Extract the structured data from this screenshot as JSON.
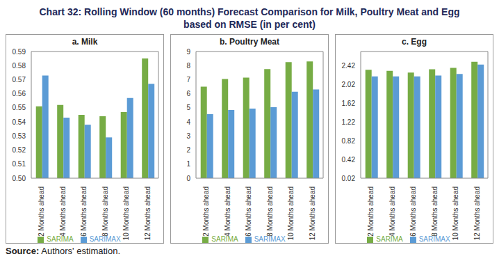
{
  "title": "Chart 32: Rolling Window (60 months) Forecast Comparison for Milk, Poultry Meat and Egg based on RMSE (in per cent)",
  "source": {
    "label": "Source:",
    "text": "Authors' estimation."
  },
  "chart_data": [
    {
      "type": "bar",
      "title": "a. Milk",
      "categories": [
        "2 Months ahead",
        "4 Months ahead",
        "6 Months ahead",
        "8 Months ahead",
        "10 Months ahead",
        "12 Months ahead"
      ],
      "series": [
        {
          "name": "SARIMA",
          "color": "#77ac45",
          "values": [
            0.551,
            0.552,
            0.545,
            0.544,
            0.547,
            0.585
          ]
        },
        {
          "name": "SARIMAX",
          "color": "#5b9bd5",
          "values": [
            0.573,
            0.543,
            0.538,
            0.529,
            0.557,
            0.567
          ]
        }
      ],
      "ylim": [
        0.5,
        0.59
      ],
      "yticks": [
        {
          "value": 0.5,
          "label": "0.50"
        },
        0.51,
        0.52,
        0.53,
        0.54,
        0.55,
        0.56,
        0.57,
        0.58,
        0.59
      ],
      "grid": false,
      "legend": "bottom"
    },
    {
      "type": "bar",
      "title": "b. Poultry Meat",
      "categories": [
        "2 Months ahead",
        "4 Months ahead",
        "6 Months ahead",
        "8 Months ahead",
        "10 Months ahead",
        "12 Months ahead"
      ],
      "series": [
        {
          "name": "SARIMA",
          "color": "#77ac45",
          "values": [
            6.5,
            7.05,
            7.15,
            7.75,
            8.25,
            8.3
          ]
        },
        {
          "name": "SARIMAX",
          "color": "#5b9bd5",
          "values": [
            4.55,
            4.85,
            4.95,
            5.05,
            6.15,
            6.3
          ]
        }
      ],
      "ylim": [
        0,
        9
      ],
      "yticks": [
        0,
        1,
        2,
        3,
        4,
        5,
        6,
        7,
        8,
        9
      ],
      "grid": false,
      "legend": "bottom"
    },
    {
      "type": "bar",
      "title": "c. Egg",
      "categories": [
        "2 Months ahead",
        "4 Months ahead",
        "6 Months ahead",
        "8 Months ahead",
        "10 Months ahead",
        "12 Months ahead"
      ],
      "series": [
        {
          "name": "SARIMA",
          "color": "#77ac45",
          "values": [
            2.33,
            2.31,
            2.27,
            2.34,
            2.37,
            2.5
          ]
        },
        {
          "name": "SARIMAX",
          "color": "#5b9bd5",
          "values": [
            2.19,
            2.19,
            2.19,
            2.21,
            2.24,
            2.44
          ]
        }
      ],
      "ylim": [
        0.02,
        2.72
      ],
      "yticks": [
        0.02,
        0.42,
        0.82,
        1.22,
        1.62,
        2.02,
        2.42
      ],
      "grid": false,
      "legend": "bottom"
    }
  ]
}
